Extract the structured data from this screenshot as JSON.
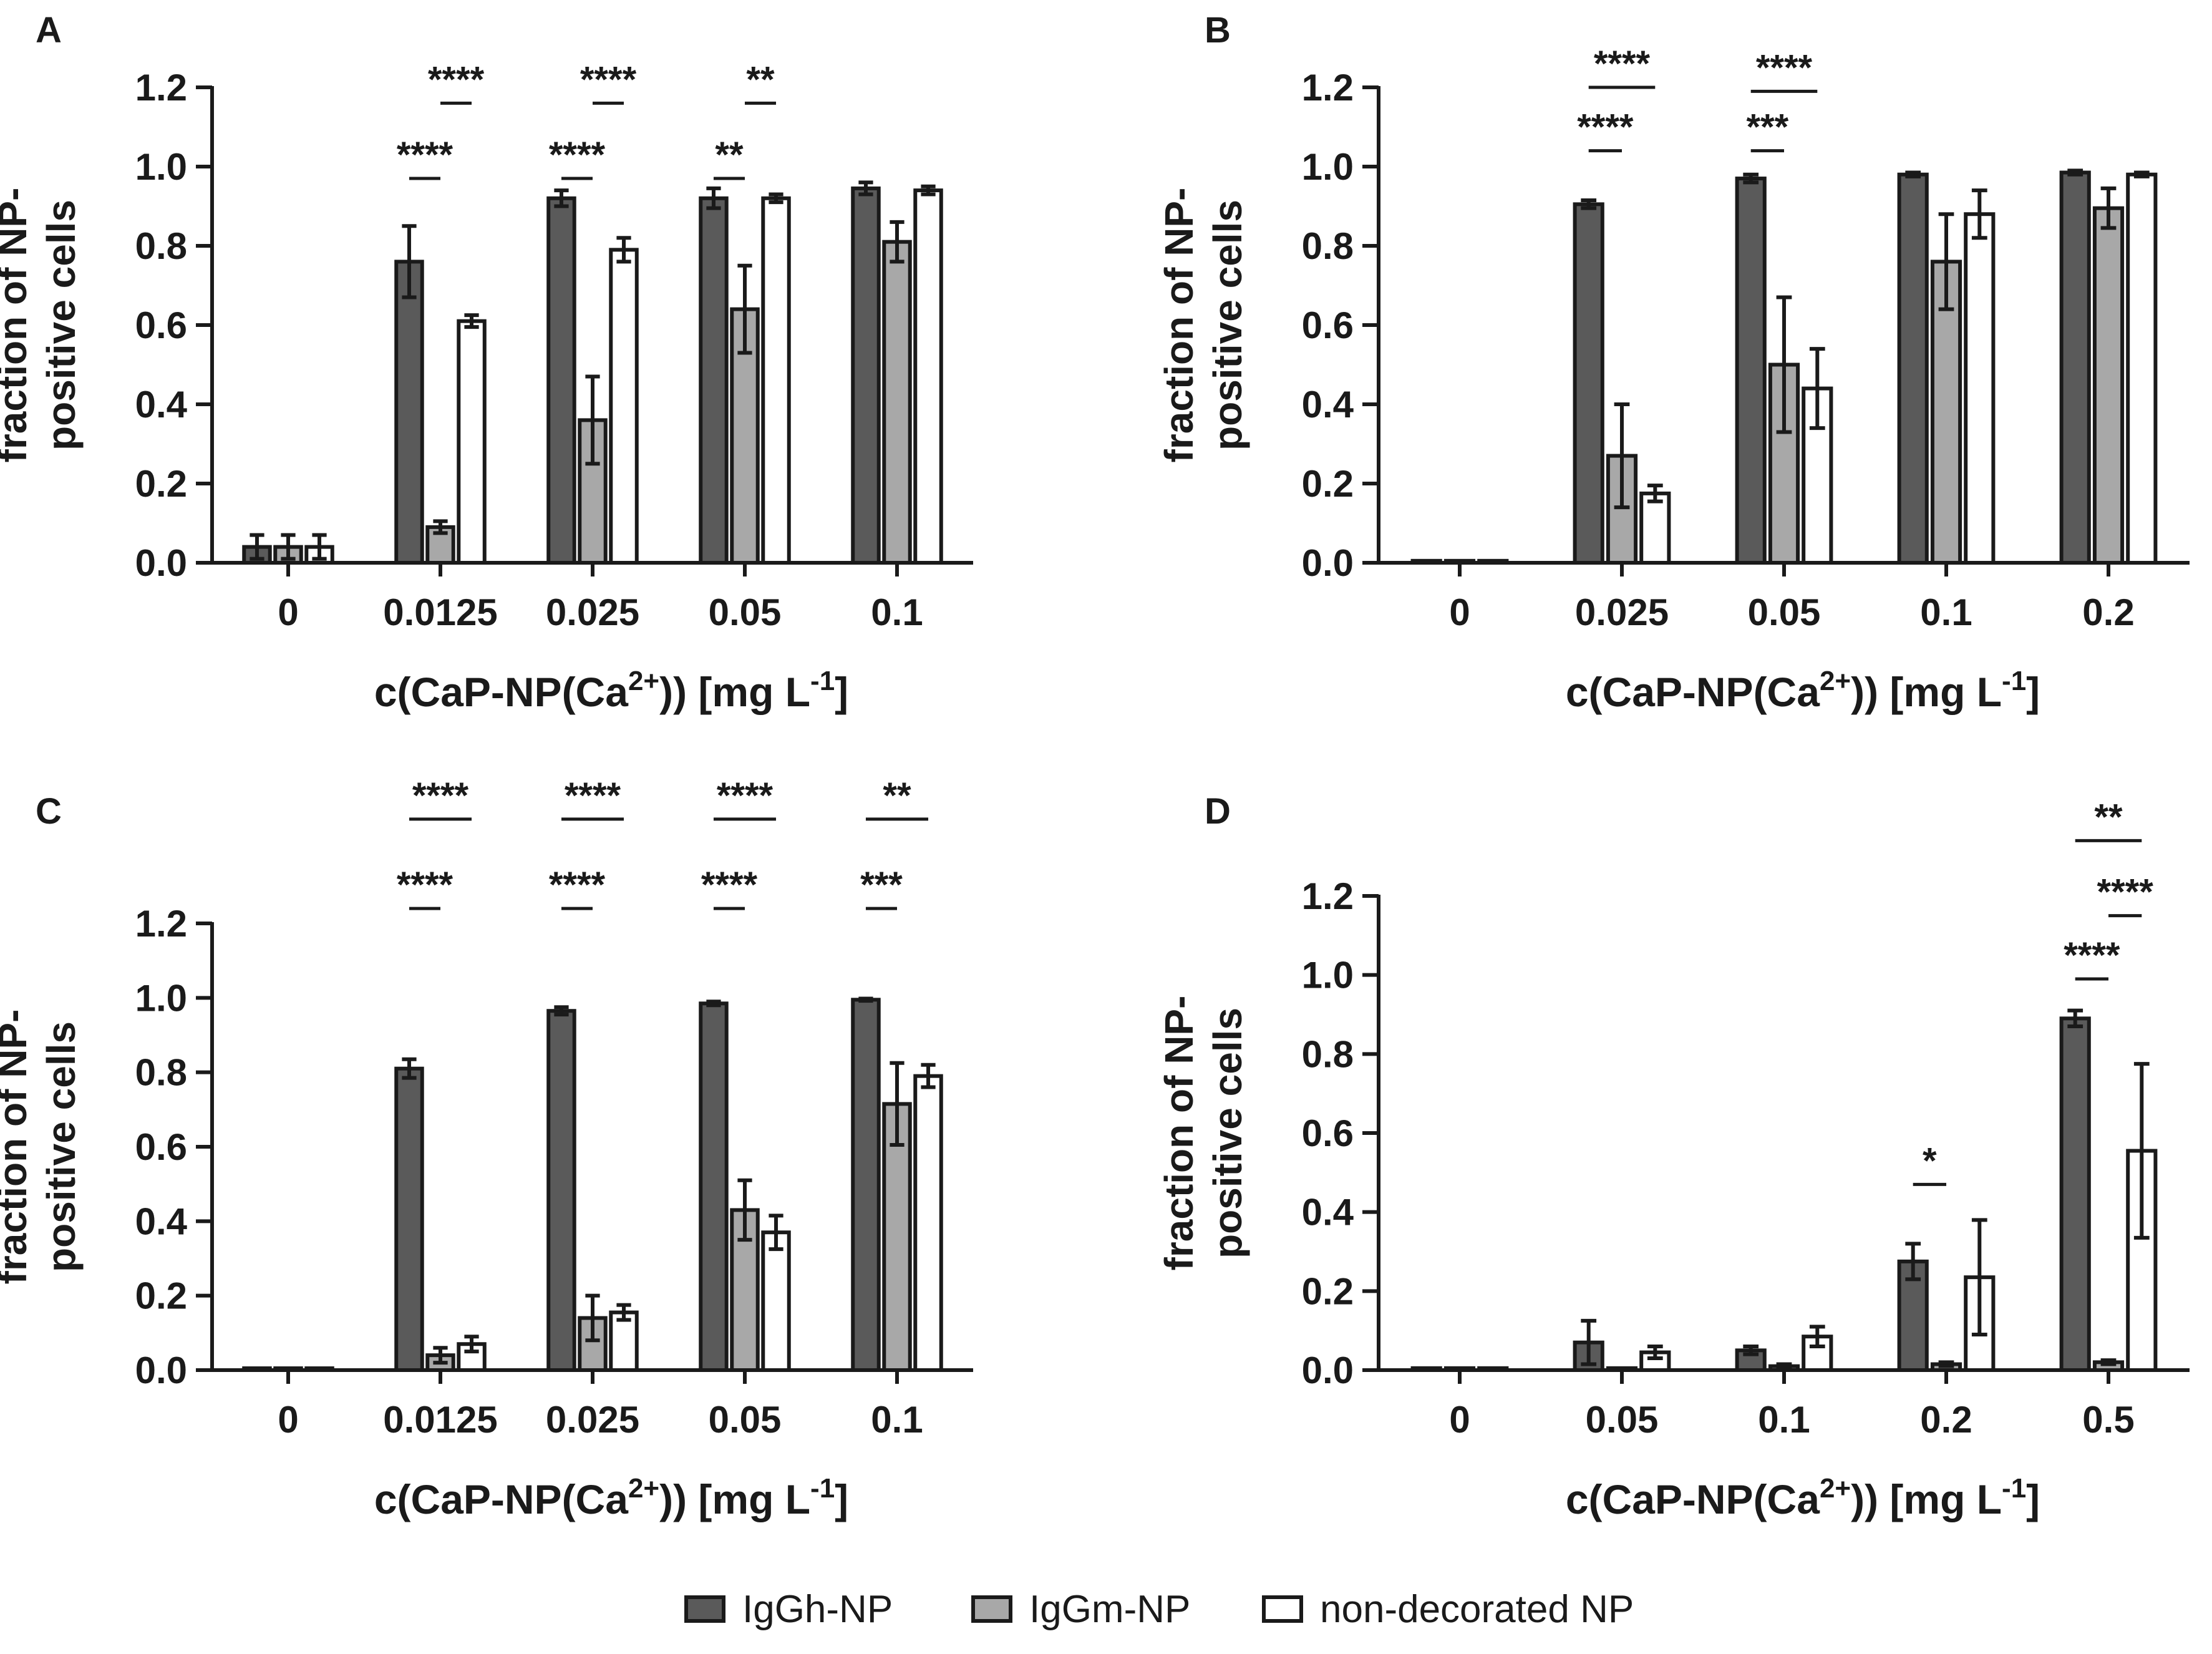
{
  "legend": {
    "series_names": [
      "IgGh-NP",
      "IgGm-NP",
      "non-decorated NP"
    ],
    "colors": [
      "#5a5a5a",
      "#a8a8a8",
      "#ffffff"
    ]
  },
  "chart_data": [
    {
      "panel": "A",
      "type": "bar",
      "ylabel_line1": "fraction of NP-",
      "ylabel_line2": "positive cells",
      "xlabel_main": "c(CaP-NP(Ca",
      "xlabel_sup": "2+",
      "xlabel_mid": ")) [mg L",
      "xlabel_sup2": "-1",
      "xlabel_end": "]",
      "ylim": [
        0,
        1.2
      ],
      "y_ticks": [
        "0.0",
        "0.2",
        "0.4",
        "0.6",
        "0.8",
        "1.0",
        "1.2"
      ],
      "categories": [
        "0",
        "0.0125",
        "0.025",
        "0.05",
        "0.1"
      ],
      "series": [
        {
          "name": "IgGh-NP",
          "values": [
            0.04,
            0.76,
            0.92,
            0.92,
            0.945
          ],
          "errors": [
            0.03,
            0.09,
            0.02,
            0.025,
            0.015
          ]
        },
        {
          "name": "IgGm-NP",
          "values": [
            0.04,
            0.09,
            0.36,
            0.64,
            0.81
          ],
          "errors": [
            0.03,
            0.015,
            0.11,
            0.11,
            0.05
          ]
        },
        {
          "name": "non-decorated NP",
          "values": [
            0.04,
            0.61,
            0.79,
            0.92,
            0.94
          ],
          "errors": [
            0.03,
            0.015,
            0.03,
            0.01,
            0.01
          ]
        }
      ],
      "significance": [
        {
          "group": 1,
          "from": 0,
          "to": 1,
          "y": 0.97,
          "text": "****"
        },
        {
          "group": 1,
          "from": 1,
          "to": 2,
          "y": 1.16,
          "text": "****"
        },
        {
          "group": 2,
          "from": 0,
          "to": 1,
          "y": 0.97,
          "text": "****"
        },
        {
          "group": 2,
          "from": 1,
          "to": 2,
          "y": 1.16,
          "text": "****"
        },
        {
          "group": 3,
          "from": 0,
          "to": 1,
          "y": 0.97,
          "text": "**"
        },
        {
          "group": 3,
          "from": 1,
          "to": 2,
          "y": 1.16,
          "text": "**"
        }
      ]
    },
    {
      "panel": "B",
      "type": "bar",
      "ylabel_line1": "fraction of NP-",
      "ylabel_line2": "positive cells",
      "xlabel_main": "c(CaP-NP(Ca",
      "xlabel_sup": "2+",
      "xlabel_mid": ")) [mg L",
      "xlabel_sup2": "-1",
      "xlabel_end": "]",
      "ylim": [
        0,
        1.2
      ],
      "y_ticks": [
        "0.0",
        "0.2",
        "0.4",
        "0.6",
        "0.8",
        "1.0",
        "1.2"
      ],
      "categories": [
        "0",
        "0.025",
        "0.05",
        "0.1",
        "0.2"
      ],
      "series": [
        {
          "name": "IgGh-NP",
          "values": [
            0.005,
            0.905,
            0.97,
            0.98,
            0.985
          ],
          "errors": [
            0,
            0.01,
            0.01,
            0.005,
            0.005
          ]
        },
        {
          "name": "IgGm-NP",
          "values": [
            0.005,
            0.27,
            0.5,
            0.76,
            0.895
          ],
          "errors": [
            0,
            0.13,
            0.17,
            0.12,
            0.05
          ]
        },
        {
          "name": "non-decorated NP",
          "values": [
            0.005,
            0.175,
            0.44,
            0.88,
            0.98
          ],
          "errors": [
            0,
            0.02,
            0.1,
            0.06,
            0.005
          ]
        }
      ],
      "significance": [
        {
          "group": 1,
          "from": 0,
          "to": 1,
          "y": 1.04,
          "text": "****"
        },
        {
          "group": 1,
          "from": 0,
          "to": 2,
          "y": 1.2,
          "text": "****"
        },
        {
          "group": 2,
          "from": 0,
          "to": 1,
          "y": 1.04,
          "text": "***"
        },
        {
          "group": 2,
          "from": 0,
          "to": 2,
          "y": 1.19,
          "text": "****"
        }
      ]
    },
    {
      "panel": "C",
      "type": "bar",
      "ylabel_line1": "fraction of NP-",
      "ylabel_line2": "positive cells",
      "xlabel_main": "c(CaP-NP(Ca",
      "xlabel_sup": "2+",
      "xlabel_mid": ")) [mg L",
      "xlabel_sup2": "-1",
      "xlabel_end": "]",
      "ylim": [
        0,
        1.2
      ],
      "y_ticks": [
        "0.0",
        "0.2",
        "0.4",
        "0.6",
        "0.8",
        "1.0",
        "1.2"
      ],
      "categories": [
        "0",
        "0.0125",
        "0.025",
        "0.05",
        "0.1"
      ],
      "series": [
        {
          "name": "IgGh-NP",
          "values": [
            0.005,
            0.81,
            0.965,
            0.985,
            0.995
          ],
          "errors": [
            0,
            0.025,
            0.01,
            0.005,
            0.003
          ]
        },
        {
          "name": "IgGm-NP",
          "values": [
            0.005,
            0.04,
            0.14,
            0.43,
            0.715
          ],
          "errors": [
            0,
            0.02,
            0.06,
            0.08,
            0.11
          ]
        },
        {
          "name": "non-decorated NP",
          "values": [
            0.005,
            0.07,
            0.155,
            0.37,
            0.79
          ],
          "errors": [
            0,
            0.02,
            0.02,
            0.045,
            0.03
          ]
        }
      ],
      "significance": [
        {
          "group": 1,
          "from": 0,
          "to": 1,
          "y": 1.24,
          "text": "****"
        },
        {
          "group": 1,
          "from": 0,
          "to": 2,
          "y": 1.48,
          "text": "****"
        },
        {
          "group": 2,
          "from": 0,
          "to": 1,
          "y": 1.24,
          "text": "****"
        },
        {
          "group": 2,
          "from": 0,
          "to": 2,
          "y": 1.48,
          "text": "****"
        },
        {
          "group": 3,
          "from": 0,
          "to": 1,
          "y": 1.24,
          "text": "****"
        },
        {
          "group": 3,
          "from": 0,
          "to": 2,
          "y": 1.48,
          "text": "****"
        },
        {
          "group": 4,
          "from": 0,
          "to": 1,
          "y": 1.24,
          "text": "***"
        },
        {
          "group": 4,
          "from": 0,
          "to": 2,
          "y": 1.48,
          "text": "**"
        }
      ]
    },
    {
      "panel": "D",
      "type": "bar",
      "ylabel_line1": "fraction of NP-",
      "ylabel_line2": "positive cells",
      "xlabel_main": "c(CaP-NP(Ca",
      "xlabel_sup": "2+",
      "xlabel_mid": ")) [mg L",
      "xlabel_sup2": "-1",
      "xlabel_end": "]",
      "ylim": [
        0,
        1.2
      ],
      "y_ticks": [
        "0.0",
        "0.2",
        "0.4",
        "0.6",
        "0.8",
        "1.0",
        "1.2"
      ],
      "categories": [
        "0",
        "0.05",
        "0.1",
        "0.2",
        "0.5"
      ],
      "series": [
        {
          "name": "IgGh-NP",
          "values": [
            0.005,
            0.07,
            0.05,
            0.275,
            0.89
          ],
          "errors": [
            0,
            0.055,
            0.01,
            0.045,
            0.02
          ]
        },
        {
          "name": "IgGm-NP",
          "values": [
            0.005,
            0.005,
            0.01,
            0.015,
            0.02
          ],
          "errors": [
            0,
            0,
            0.005,
            0.005,
            0.005
          ]
        },
        {
          "name": "non-decorated NP",
          "values": [
            0.005,
            0.045,
            0.085,
            0.235,
            0.555
          ],
          "errors": [
            0,
            0.015,
            0.025,
            0.145,
            0.22
          ]
        }
      ],
      "significance": [
        {
          "group": 3,
          "from": 0,
          "to": 1,
          "y": 0.47,
          "text": "*"
        },
        {
          "group": 4,
          "from": 0,
          "to": 1,
          "y": 0.99,
          "text": "****"
        },
        {
          "group": 4,
          "from": 1,
          "to": 2,
          "y": 1.15,
          "text": "****"
        },
        {
          "group": 4,
          "from": 0,
          "to": 2,
          "y": 1.34,
          "text": "**"
        }
      ]
    }
  ]
}
